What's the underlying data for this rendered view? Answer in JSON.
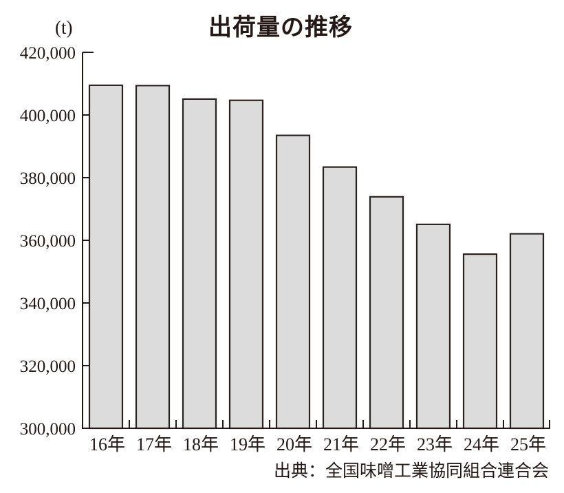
{
  "chart_data": {
    "type": "bar",
    "title": "出荷量の推移",
    "unit": "(t)",
    "xlabel": "",
    "ylabel": "(t)",
    "categories": [
      "16年",
      "17年",
      "18年",
      "19年",
      "20年",
      "21年",
      "22年",
      "23年",
      "24年",
      "25年"
    ],
    "values": [
      409700,
      409600,
      405300,
      404900,
      393700,
      383600,
      374100,
      365300,
      355800,
      362300
    ],
    "ylim": [
      300000,
      420000
    ],
    "yticks": [
      300000,
      320000,
      340000,
      360000,
      380000,
      400000,
      420000
    ],
    "ytick_labels": [
      "300,000",
      "320,000",
      "340,000",
      "360,000",
      "380,000",
      "400,000",
      "420,000"
    ],
    "grid": false,
    "legend": null,
    "source": "出典：全国味噌工業協同組合連合会",
    "colors": {
      "bar_fill": "#dcdcdc",
      "bar_stroke": "#2a2220",
      "axis": "#231815",
      "text": "#231815"
    }
  }
}
